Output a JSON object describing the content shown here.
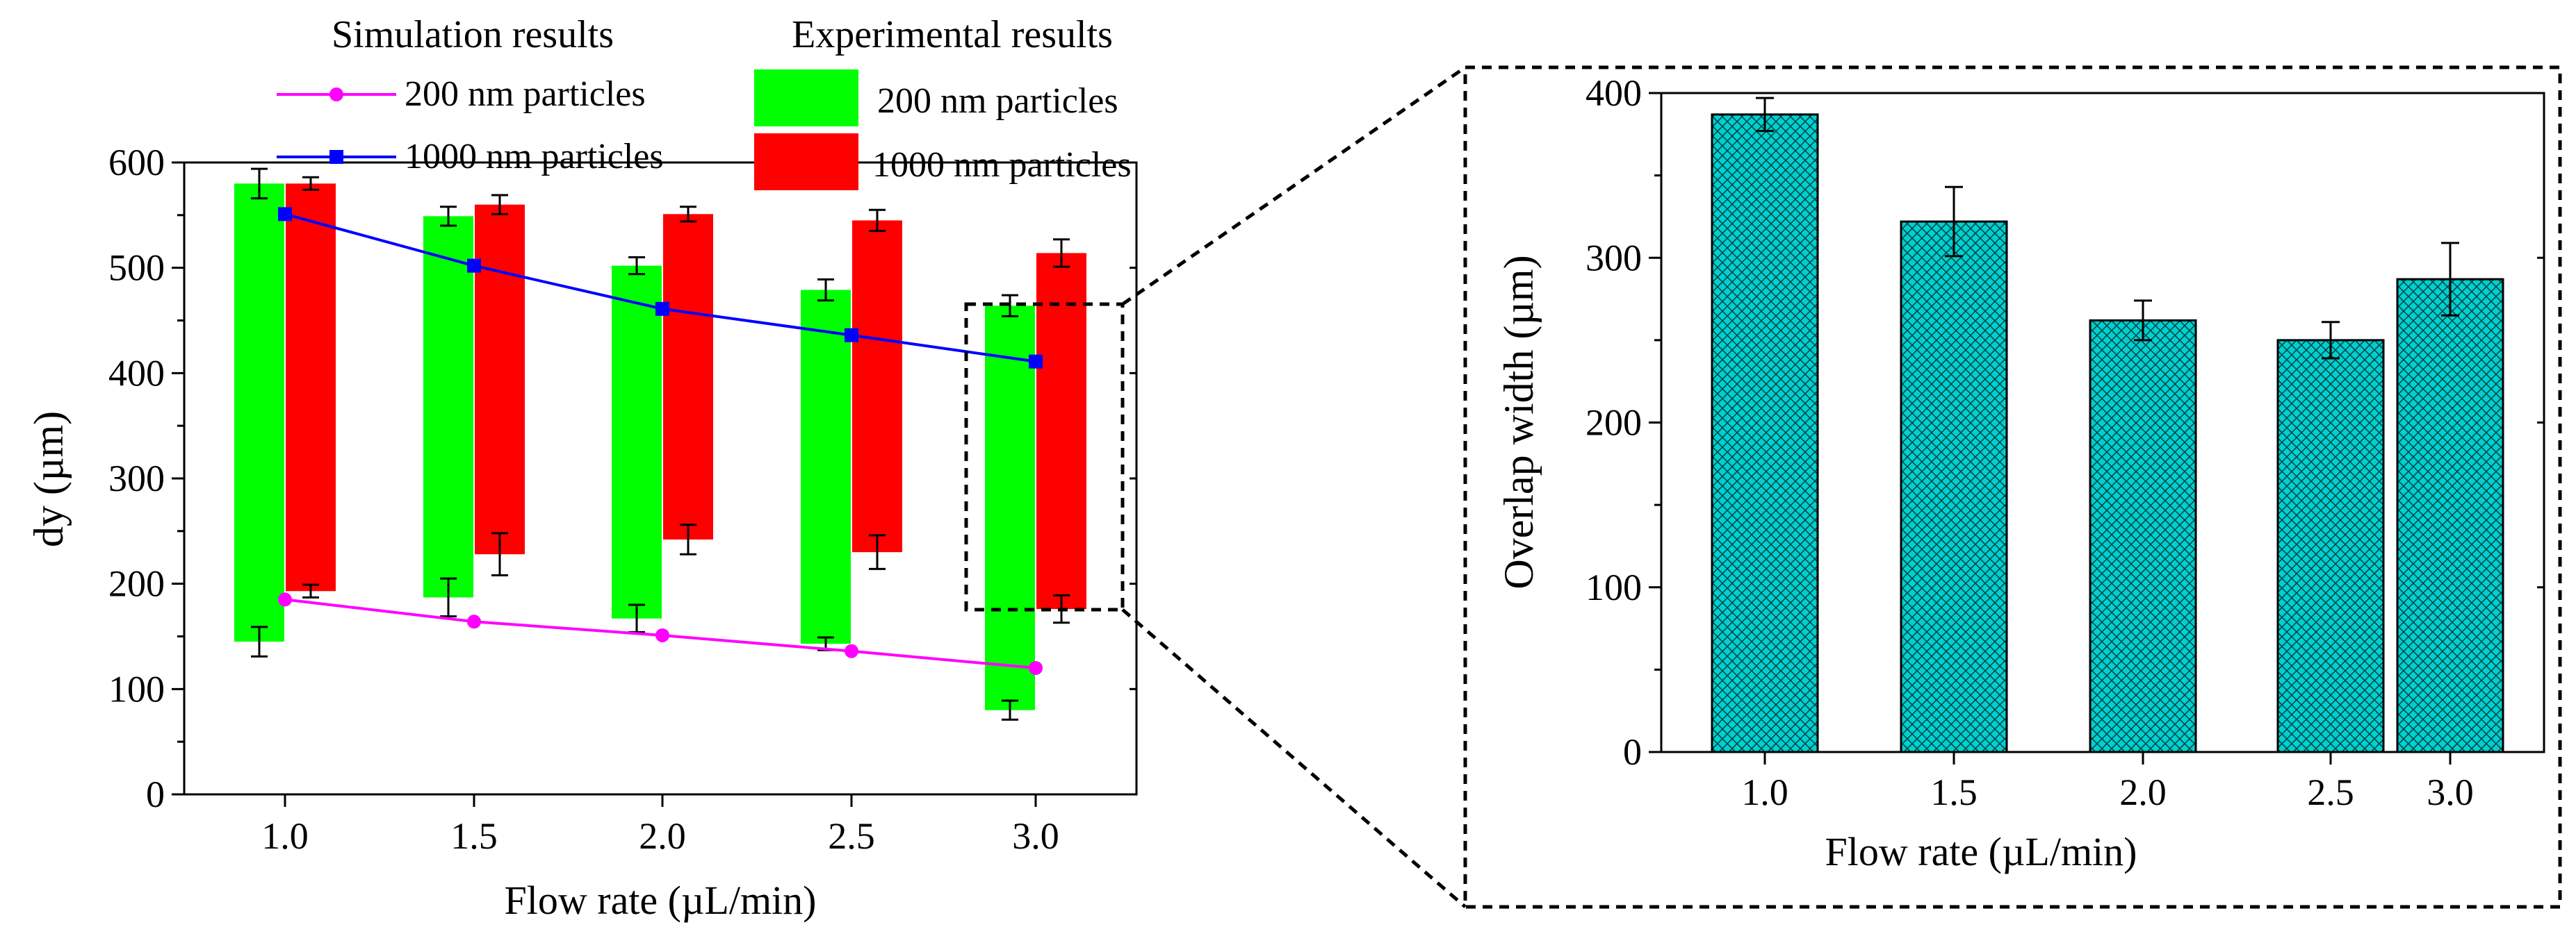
{
  "chart_data": [
    {
      "type": "bar",
      "panel": "left",
      "xlabel": "Flow rate (µL/min)",
      "ylabel": "dy (µm)",
      "ylim": [
        0,
        600
      ],
      "yticks": [
        "0",
        "100",
        "200",
        "300",
        "400",
        "500",
        "600"
      ],
      "categories": [
        "1.0",
        "1.5",
        "2.0",
        "2.5",
        "3.0"
      ],
      "legend": {
        "simulation_title": "Simulation results",
        "experimental_title": "Experimental results",
        "sim_200_label": "200 nm particles",
        "sim_1000_label": "1000 nm particles",
        "exp_200_label": "200 nm particles",
        "exp_1000_label": "1000 nm particles"
      },
      "experimental": [
        {
          "name": "200 nm particles",
          "color": "#00ff00",
          "ranges": [
            {
              "low": 145,
              "high": 580,
              "low_err": 14,
              "high_err": 14
            },
            {
              "low": 187,
              "high": 549,
              "low_err": 18,
              "high_err": 9
            },
            {
              "low": 167,
              "high": 502,
              "low_err": 13,
              "high_err": 8
            },
            {
              "low": 143,
              "high": 479,
              "low_err": 6,
              "high_err": 10
            },
            {
              "low": 80,
              "high": 464,
              "low_err": 9,
              "high_err": 10
            }
          ]
        },
        {
          "name": "1000 nm particles",
          "color": "#ff0000",
          "ranges": [
            {
              "low": 193,
              "high": 580,
              "low_err": 6,
              "high_err": 6
            },
            {
              "low": 228,
              "high": 560,
              "low_err": 20,
              "high_err": 9
            },
            {
              "low": 242,
              "high": 551,
              "low_err": 14,
              "high_err": 7
            },
            {
              "low": 230,
              "high": 545,
              "low_err": 16,
              "high_err": 10
            },
            {
              "low": 176,
              "high": 514,
              "low_err": 13,
              "high_err": 13
            }
          ]
        }
      ],
      "series": [
        {
          "name": "200 nm particles",
          "color": "#ff00ff",
          "marker": "circle",
          "values": [
            185,
            164,
            151,
            136,
            120
          ]
        },
        {
          "name": "1000 nm particles",
          "color": "#0000ff",
          "marker": "square",
          "values": [
            551,
            502,
            461,
            436,
            411
          ]
        }
      ]
    },
    {
      "type": "bar",
      "panel": "right",
      "xlabel": "Flow rate (µL/min)",
      "ylabel": "Overlap width (µm)",
      "ylim": [
        0,
        400
      ],
      "yticks": [
        "0",
        "100",
        "200",
        "300",
        "400"
      ],
      "categories": [
        "1.0",
        "1.5",
        "2.0",
        "2.5",
        "3.0"
      ],
      "values": [
        387,
        322,
        262,
        250,
        287
      ],
      "errors": [
        10,
        21,
        12,
        11,
        22
      ],
      "color": "#00d0d0",
      "pattern": "crosshatch"
    }
  ]
}
